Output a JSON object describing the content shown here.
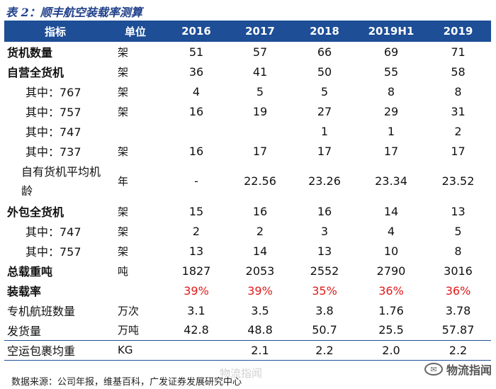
{
  "title": "表 2：顺丰航空装载率测算",
  "table": {
    "headers": [
      "指标",
      "单位",
      "2016",
      "2017",
      "2018",
      "2019H1",
      "2019"
    ],
    "rows": [
      {
        "label": "货机数量",
        "unit": "架",
        "values": [
          "51",
          "57",
          "66",
          "69",
          "71"
        ]
      },
      {
        "label": "自营全货机",
        "unit": "架",
        "values": [
          "36",
          "41",
          "50",
          "55",
          "58"
        ]
      },
      {
        "label": "其中：767",
        "unit": "架",
        "values": [
          "4",
          "5",
          "5",
          "8",
          "8"
        ]
      },
      {
        "label": "其中：757",
        "unit": "架",
        "values": [
          "16",
          "19",
          "27",
          "29",
          "31"
        ]
      },
      {
        "label": "其中：747",
        "unit": "",
        "values": [
          "",
          "",
          "1",
          "1",
          "2"
        ]
      },
      {
        "label": "其中：737",
        "unit": "架",
        "values": [
          "16",
          "17",
          "17",
          "17",
          "17"
        ]
      },
      {
        "label": "自有货机平均机龄",
        "unit": "年",
        "values": [
          "-",
          "22.56",
          "23.26",
          "23.34",
          "23.52"
        ]
      },
      {
        "label": "外包全货机",
        "unit": "架",
        "values": [
          "15",
          "16",
          "16",
          "14",
          "13"
        ]
      },
      {
        "label": "其中：747",
        "unit": "架",
        "values": [
          "2",
          "2",
          "3",
          "4",
          "5"
        ]
      },
      {
        "label": "其中：757",
        "unit": "架",
        "values": [
          "13",
          "14",
          "13",
          "10",
          "8"
        ]
      },
      {
        "label": "总载重吨",
        "unit": "吨",
        "values": [
          "1827",
          "2053",
          "2552",
          "2790",
          "3016"
        ]
      },
      {
        "label": "装载率",
        "unit": "",
        "values": [
          "39%",
          "39%",
          "35%",
          "36%",
          "36%"
        ]
      },
      {
        "label": "专机航班数量",
        "unit": "万次",
        "values": [
          "3.1",
          "3.5",
          "3.8",
          "1.76",
          "3.78"
        ]
      },
      {
        "label": "发货量",
        "unit": "万吨",
        "values": [
          "42.8",
          "48.8",
          "50.7",
          "25.5",
          "57.87"
        ]
      },
      {
        "label": "空运包裹均重",
        "unit": "KG",
        "values": [
          "",
          "2.1",
          "2.2",
          "2.0",
          "2.2"
        ]
      }
    ]
  },
  "source": "数据来源：公司年报，维基百科，广发证券发展研究中心",
  "watermark": "物流指闻",
  "brand": {
    "name": "物流指闻",
    "logo": "物流指闻"
  },
  "colors": {
    "header_bg": "#1d4e96",
    "title": "#1f3f8a",
    "highlight": "#e01b1b"
  }
}
